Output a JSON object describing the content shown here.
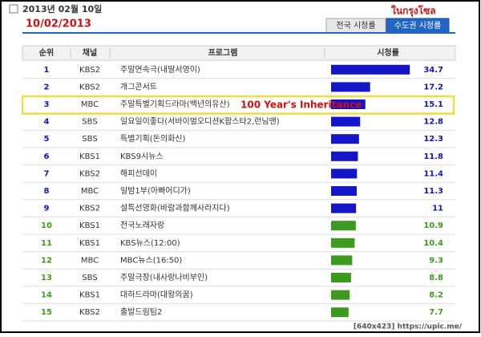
{
  "header": {
    "date": "2013년 02월 10일",
    "date_note": "10/02/2013",
    "location_note": "ในกรุงโซล",
    "tabs": [
      "전국 시청률",
      "수도권 시청률"
    ]
  },
  "table": {
    "columns": [
      "순위",
      "채널",
      "프로그램",
      "시청률"
    ],
    "rows": [
      {
        "rank": 1,
        "channel": "KBS2",
        "program": "주말연속극(내딸서영이)",
        "rating": 34.7,
        "color": "#1414c8"
      },
      {
        "rank": 2,
        "channel": "KBS2",
        "program": "개그콘서트",
        "rating": 17.2,
        "color": "#1414c8"
      },
      {
        "rank": 3,
        "channel": "MBC",
        "program": "주말특별기획드라마(백년의유산)",
        "rating": 15.1,
        "color": "#1414c8"
      },
      {
        "rank": 4,
        "channel": "SBS",
        "program": "일요일이좋다(서바이벌오디션K팝스타2,런닝맨)",
        "rating": 12.8,
        "color": "#1414c8"
      },
      {
        "rank": 5,
        "channel": "SBS",
        "program": "특별기획(돈의화신)",
        "rating": 12.3,
        "color": "#1414c8"
      },
      {
        "rank": 6,
        "channel": "KBS1",
        "program": "KBS9시뉴스",
        "rating": 11.8,
        "color": "#1414c8"
      },
      {
        "rank": 7,
        "channel": "KBS2",
        "program": "해피선데이",
        "rating": 11.4,
        "color": "#1414c8"
      },
      {
        "rank": 8,
        "channel": "MBC",
        "program": "일밤1부(아빠어디가)",
        "rating": 11.3,
        "color": "#1414c8"
      },
      {
        "rank": 9,
        "channel": "KBS2",
        "program": "설특선영화(바람과함께사라지다)",
        "rating": 11,
        "color": "#1414c8"
      },
      {
        "rank": 10,
        "channel": "KBS1",
        "program": "전국노래자랑",
        "rating": 10.9,
        "color": "#3c9a1e"
      },
      {
        "rank": 11,
        "channel": "KBS1",
        "program": "KBS뉴스(12:00)",
        "rating": 10.4,
        "color": "#3c9a1e"
      },
      {
        "rank": 12,
        "channel": "MBC",
        "program": "MBC뉴스(16:50)",
        "rating": 9.3,
        "color": "#3c9a1e"
      },
      {
        "rank": 13,
        "channel": "SBS",
        "program": "주말극장(내사랑나비부인)",
        "rating": 8.8,
        "color": "#3c9a1e"
      },
      {
        "rank": 14,
        "channel": "KBS1",
        "program": "대하드라마(대왕의꿈)",
        "rating": 8.2,
        "color": "#3c9a1e"
      },
      {
        "rank": 15,
        "channel": "KBS2",
        "program": "출발드림팀2",
        "rating": 7.7,
        "color": "#3c9a1e"
      }
    ],
    "highlight": {
      "row": 2,
      "annotation": "100 Year's Inheritance"
    }
  },
  "watermark": "[640x423] https://upic.me/"
}
